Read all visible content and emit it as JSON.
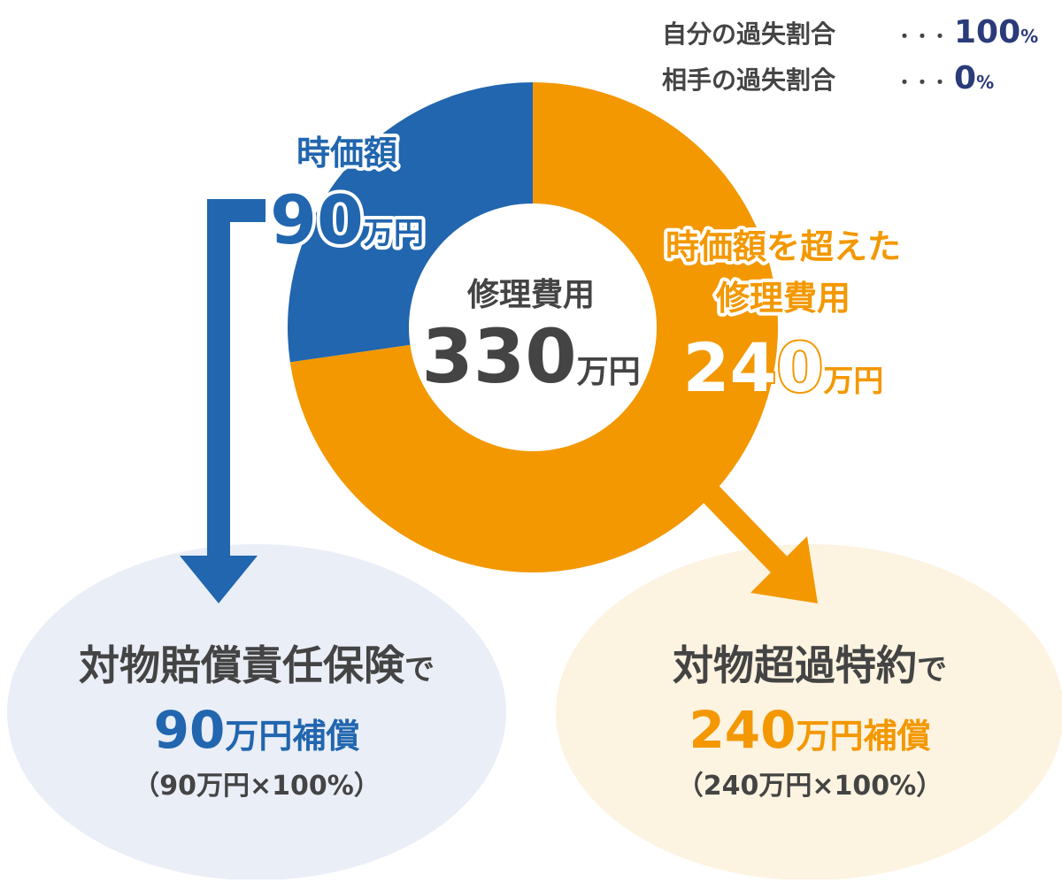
{
  "chart_data": {
    "type": "donut",
    "categories": [
      [
        "時価額"
      ],
      [
        "時価額を超えた",
        "修理費用"
      ]
    ],
    "values": [
      90,
      240
    ],
    "colors": [
      "#2166ae",
      "#f39800"
    ],
    "unit": "万円",
    "total_label": "修理費用",
    "total": 330
  },
  "fault_ratios": {
    "leader": "・・・",
    "rows": [
      {
        "label": "自分の過失割合",
        "value": 100,
        "unit": "%"
      },
      {
        "label": "相手の過失割合",
        "value": 0,
        "unit": "%"
      }
    ]
  },
  "outcomes": [
    {
      "title": "対物賠償責任保険",
      "particle": "で",
      "amount": 90,
      "unit": "万円補償",
      "formula": "（90万円×100%）"
    },
    {
      "title": "対物超過特約",
      "particle": "で",
      "amount": 240,
      "unit": "万円補償",
      "formula": "（240万円×100%）"
    }
  ]
}
